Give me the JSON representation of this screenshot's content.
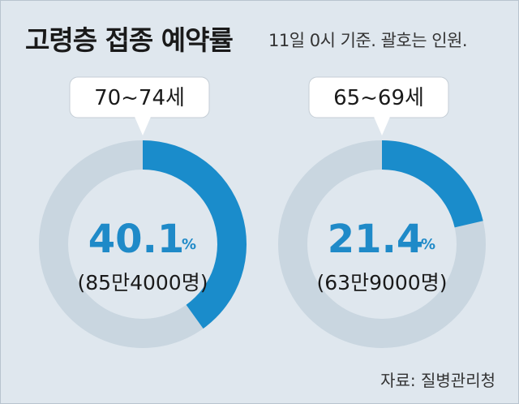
{
  "header": {
    "title": "고령층 접종 예약률",
    "subtitle": "11일 0시 기준. 괄호는 인원."
  },
  "footer": {
    "source": "자료: 질병관리청"
  },
  "colors": {
    "filled": "#1a8ccb",
    "track": "#c9d6e0",
    "accent_text": "#1f8ac8",
    "background": "#dfe7ee"
  },
  "chart_data": [
    {
      "type": "pie",
      "variant": "donut",
      "label": "70~74세",
      "value": 40.1,
      "unit": "%",
      "display_value": "40.1",
      "count_label": "(85만4000명)"
    },
    {
      "type": "pie",
      "variant": "donut",
      "label": "65~69세",
      "value": 21.4,
      "unit": "%",
      "display_value": "21.4",
      "count_label": "(63만9000명)"
    }
  ]
}
